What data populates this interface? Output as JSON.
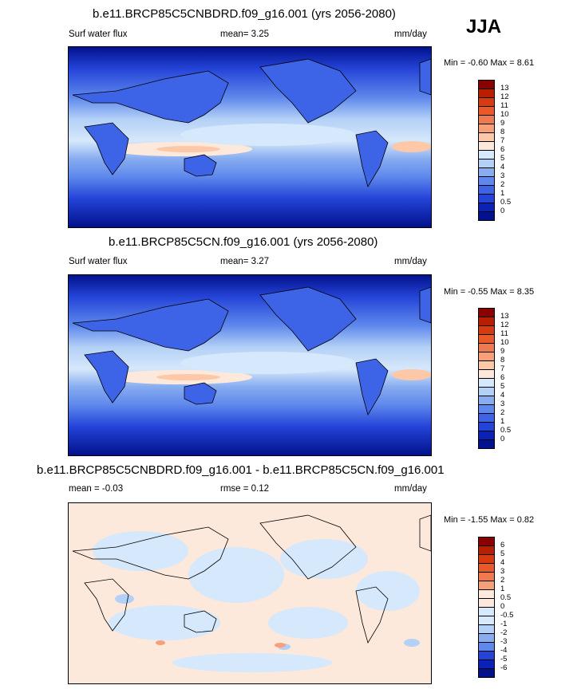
{
  "season": "JJA",
  "panels": [
    {
      "title": "b.e11.BRCP85C5CNBDRD.f09_g16.001 (yrs 2056-2080)",
      "left_label": "Surf water flux",
      "mean_text": "mean=  3.25",
      "units": "mm/day",
      "minmax_text": "Min = -0.60  Max =  8.61",
      "type": "absolute"
    },
    {
      "title": "b.e11.BRCP85C5CN.f09_g16.001 (yrs 2056-2080)",
      "left_label": "Surf water flux",
      "mean_text": "mean=  3.27",
      "units": "mm/day",
      "minmax_text": "Min = -0.55  Max =  8.35",
      "type": "absolute"
    },
    {
      "title": "b.e11.BRCP85C5CNBDRD.f09_g16.001 - b.e11.BRCP85C5CN.f09_g16.001",
      "left_label": "mean = -0.03",
      "mean_text": "rmse =  0.12",
      "units": "mm/day",
      "minmax_text": "Min = -1.55  Max =  0.82",
      "type": "difference"
    }
  ],
  "colorbars": {
    "absolute": {
      "labels": [
        "13",
        "12",
        "11",
        "10",
        "9",
        "8",
        "7",
        "6",
        "5",
        "4",
        "3",
        "2",
        "1",
        "0.5",
        "0"
      ],
      "colors": [
        "#8b0000",
        "#b81f00",
        "#d83a10",
        "#e85a2a",
        "#f07a50",
        "#f6a07a",
        "#fcc8a8",
        "#fde9dc",
        "#d6e8fb",
        "#b3d0f6",
        "#87acf0",
        "#5e88ec",
        "#3d64e6",
        "#2444d8",
        "#0a22b8",
        "#02118c"
      ]
    },
    "difference": {
      "labels": [
        "6",
        "5",
        "4",
        "3",
        "2",
        "1",
        "0.5",
        "0",
        "-0.5",
        "-1",
        "-2",
        "-3",
        "-4",
        "-5",
        "-6"
      ],
      "colors": [
        "#8b0000",
        "#b81f00",
        "#d83a10",
        "#e85a2a",
        "#f07a50",
        "#f6a07a",
        "#fde9dc",
        "#fde9dc",
        "#d6e8fb",
        "#d6e8fb",
        "#b3d0f6",
        "#87acf0",
        "#5e88ec",
        "#2444d8",
        "#0a22b8",
        "#02118c"
      ]
    }
  }
}
